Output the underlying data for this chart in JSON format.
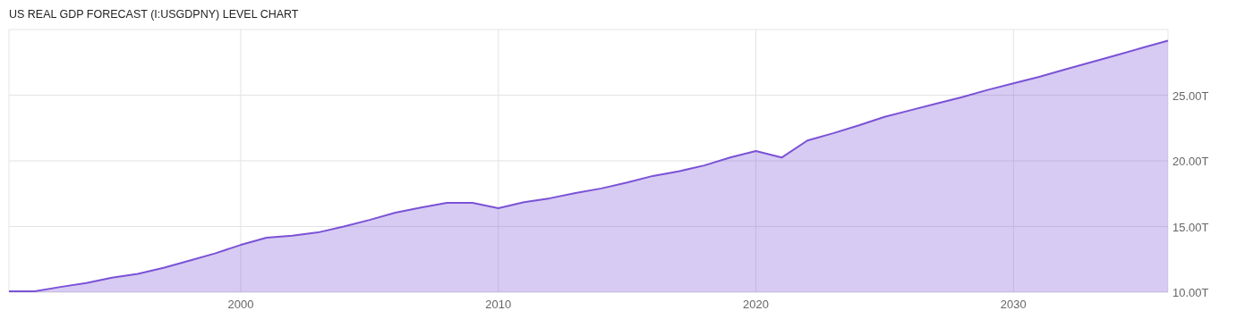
{
  "chart_data": {
    "type": "area",
    "title": "US REAL GDP FORECAST (I:USGDPNY) LEVEL CHART",
    "x": [
      1991,
      1992,
      1993,
      1994,
      1995,
      1996,
      1997,
      1998,
      1999,
      2000,
      2001,
      2002,
      2003,
      2004,
      2005,
      2006,
      2007,
      2008,
      2009,
      2010,
      2011,
      2012,
      2013,
      2014,
      2015,
      2016,
      2017,
      2018,
      2019,
      2020,
      2021,
      2022,
      2023,
      2024,
      2025,
      2026,
      2027,
      2028,
      2029,
      2030,
      2031,
      2032,
      2033,
      2034,
      2035,
      2036
    ],
    "series": [
      {
        "color": "#7b52d6",
        "values": [
          10.07,
          10.07,
          10.4,
          10.7,
          11.1,
          11.4,
          11.85,
          12.4,
          12.95,
          13.6,
          14.15,
          14.3,
          14.55,
          15.0,
          15.5,
          16.05,
          16.45,
          16.8,
          16.8,
          16.4,
          16.85,
          17.15,
          17.55,
          17.9,
          18.35,
          18.85,
          19.2,
          19.65,
          20.25,
          20.75,
          20.25,
          21.55,
          22.1,
          22.7,
          23.35,
          23.85,
          24.35,
          24.85,
          25.4,
          25.9,
          26.4,
          26.95,
          27.5,
          28.05,
          28.6,
          29.15
        ]
      }
    ],
    "xlim": [
      1991,
      2036
    ],
    "ylim": [
      10,
      30
    ],
    "xticks": [
      2000,
      2010,
      2020,
      2030
    ],
    "yticks": [
      {
        "value": 10,
        "label": "10.00T"
      },
      {
        "value": 15,
        "label": "15.00T"
      },
      {
        "value": 20,
        "label": "20.00T"
      },
      {
        "value": 25,
        "label": "25.00T"
      }
    ],
    "grid": true
  }
}
